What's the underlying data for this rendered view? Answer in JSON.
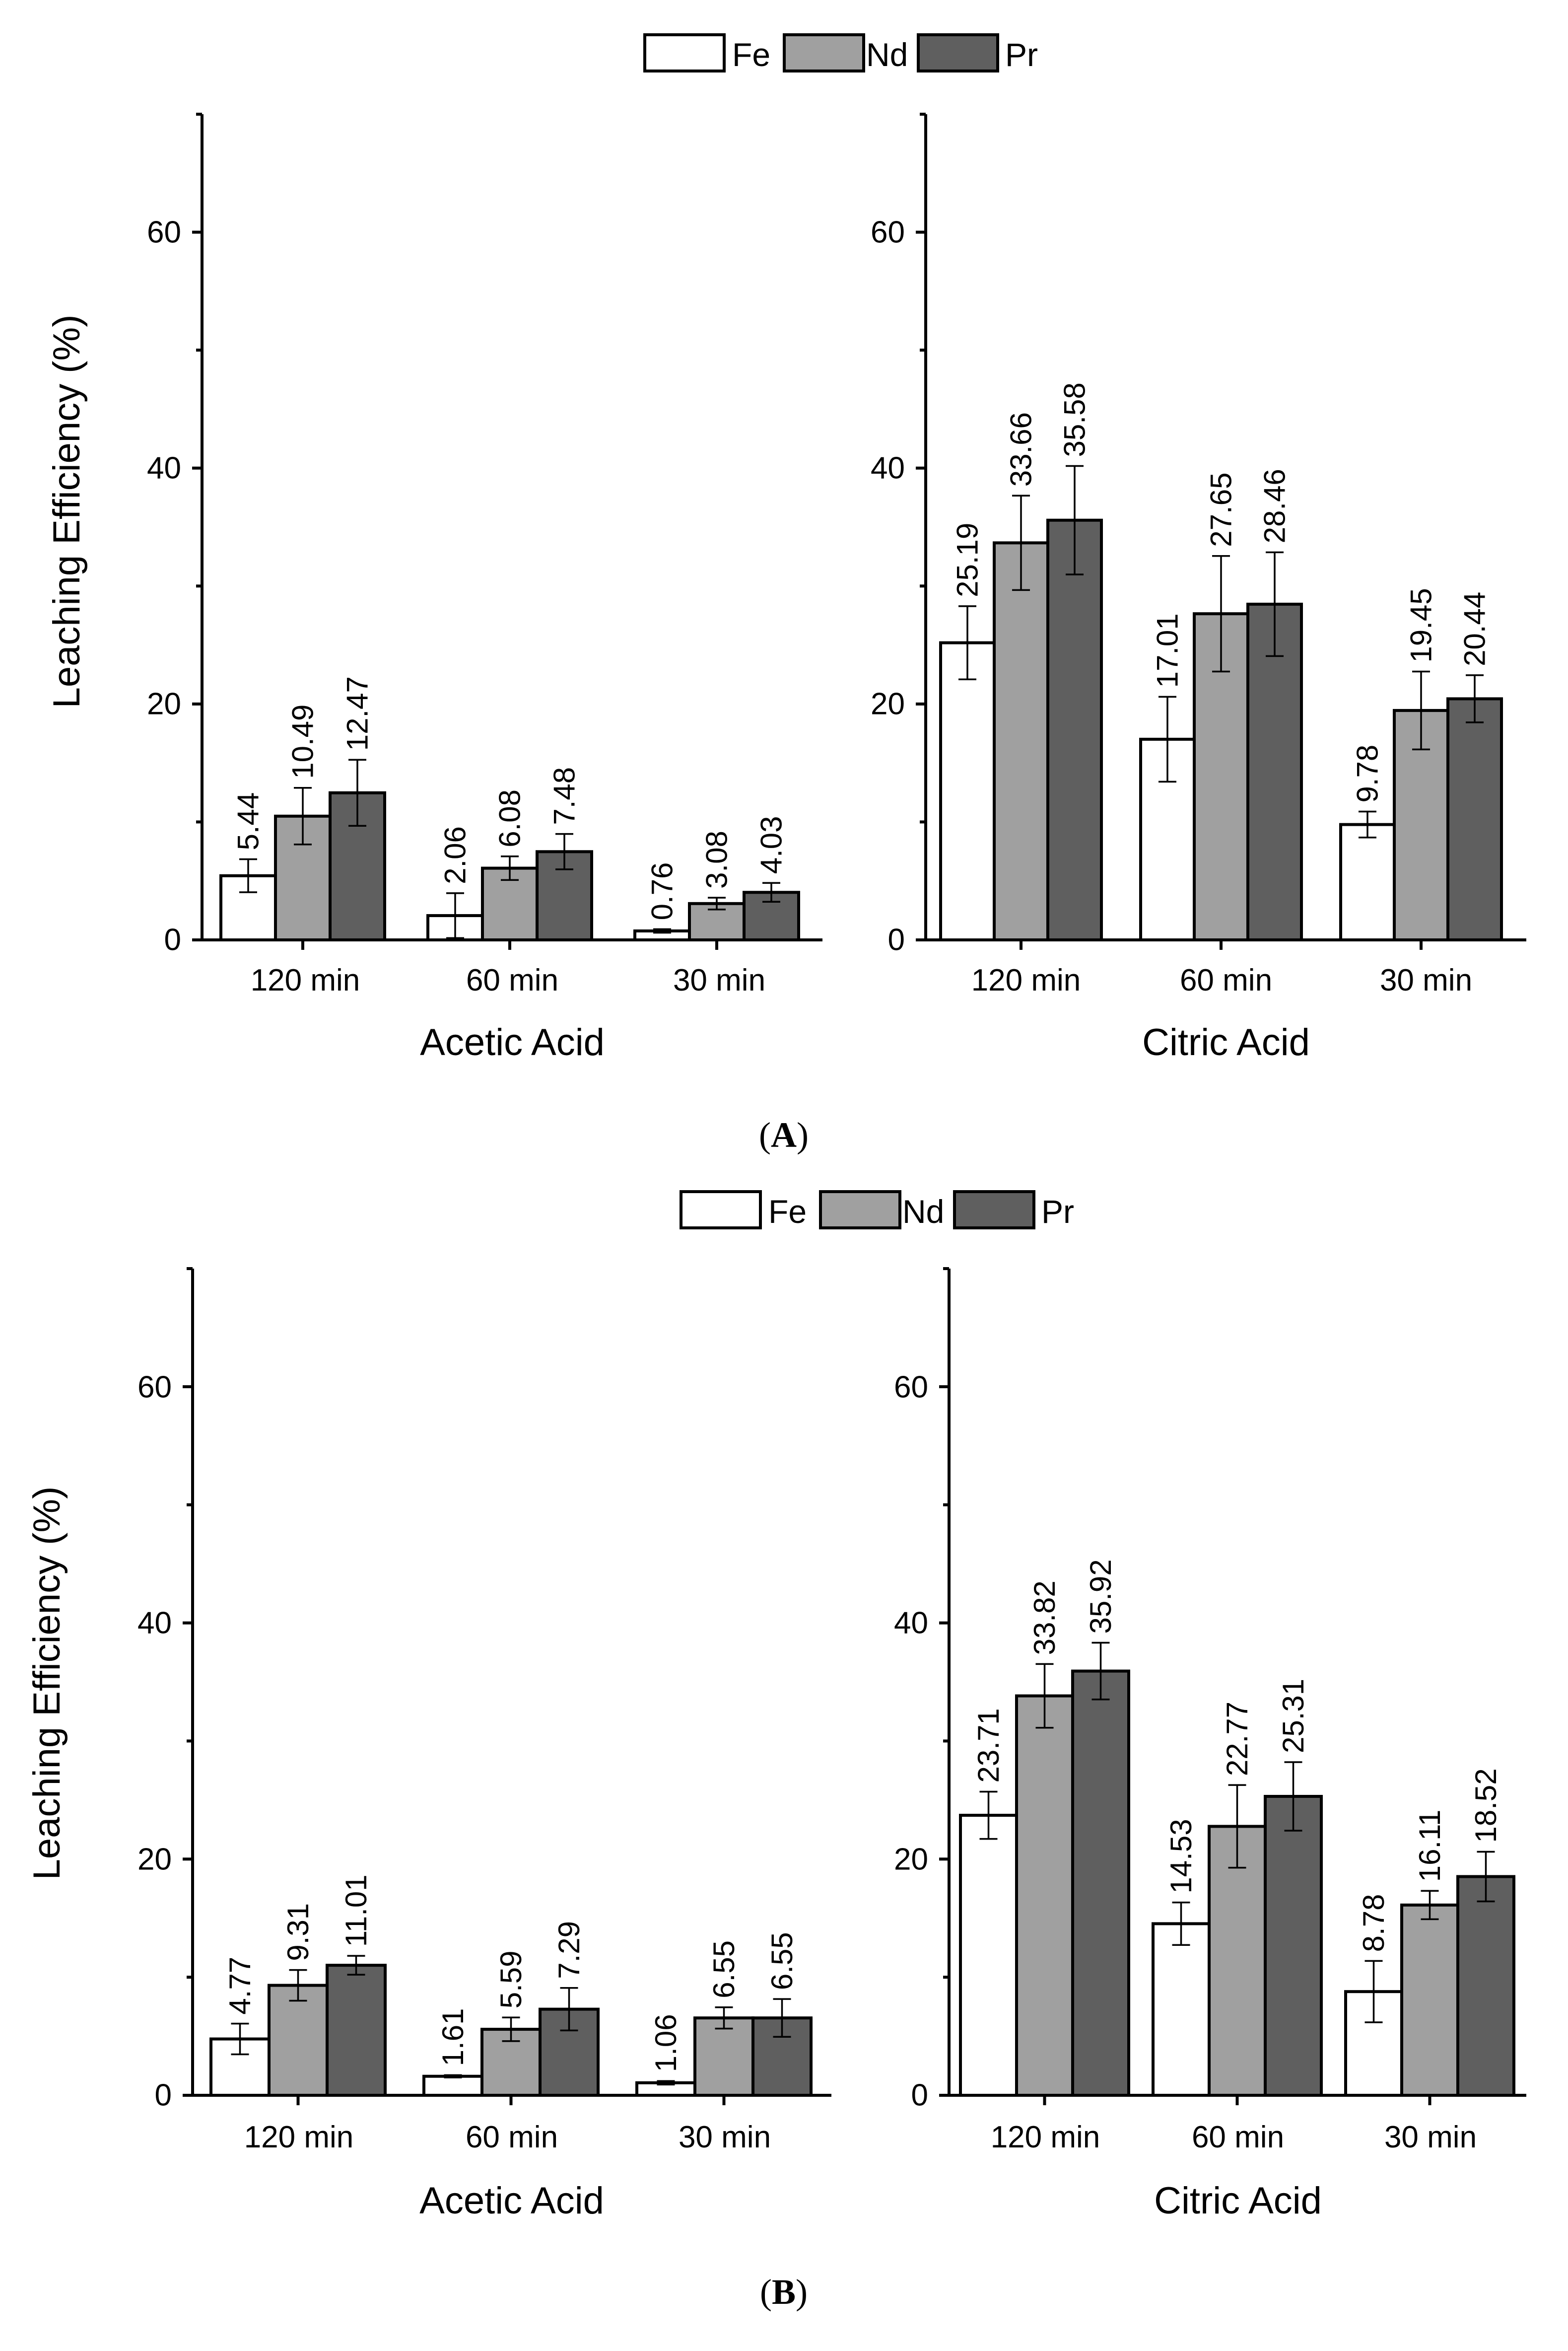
{
  "legend_items": [
    {
      "name": "Fe",
      "color": "#ffffff"
    },
    {
      "name": "Nd",
      "color": "#a0a0a0"
    },
    {
      "name": "Pr",
      "color": "#5f5f5f"
    }
  ],
  "panels": [
    {
      "label_open": "(",
      "label_letter": "A",
      "label_close": ")"
    },
    {
      "label_open": "(",
      "label_letter": "B",
      "label_close": ")"
    }
  ],
  "chart_data": [
    {
      "type": "bar",
      "panel": "A",
      "subplot": "left",
      "categories": [
        "120 min",
        "60 min",
        "30 min"
      ],
      "xlabel": "Acetic Acid",
      "ylabel": "Leaching Efficiency (%)",
      "ylim": [
        0,
        70
      ],
      "yticks": [
        0,
        20,
        40,
        60
      ],
      "series": [
        {
          "name": "Fe",
          "values": [
            5.44,
            2.06,
            0.76
          ],
          "errors": [
            1.4,
            1.9,
            0.15
          ],
          "labels": [
            "5.44",
            "2.06",
            "0.76"
          ]
        },
        {
          "name": "Nd",
          "values": [
            10.49,
            6.08,
            3.08
          ],
          "errors": [
            2.4,
            1.0,
            0.5
          ],
          "labels": [
            "10.49",
            "6.08",
            "3.08"
          ]
        },
        {
          "name": "Pr",
          "values": [
            12.47,
            7.48,
            4.03
          ],
          "errors": [
            2.8,
            1.5,
            0.8
          ],
          "labels": [
            "12.47",
            "7.48",
            "4.03"
          ]
        }
      ]
    },
    {
      "type": "bar",
      "panel": "A",
      "subplot": "right",
      "categories": [
        "120 min",
        "60 min",
        "30 min"
      ],
      "xlabel": "Citric Acid",
      "ylabel": "",
      "ylim": [
        0,
        70
      ],
      "yticks": [
        0,
        20,
        40,
        60
      ],
      "series": [
        {
          "name": "Fe",
          "values": [
            25.19,
            17.01,
            9.78
          ],
          "errors": [
            3.1,
            3.6,
            1.1
          ],
          "labels": [
            "25.19",
            "17.01",
            "9.78"
          ]
        },
        {
          "name": "Nd",
          "values": [
            33.66,
            27.65,
            19.45
          ],
          "errors": [
            4.0,
            4.9,
            3.3
          ],
          "labels": [
            "33.66",
            "27.65",
            "19.45"
          ]
        },
        {
          "name": "Pr",
          "values": [
            35.58,
            28.46,
            20.44
          ],
          "errors": [
            4.6,
            4.4,
            2.0
          ],
          "labels": [
            "35.58",
            "28.46",
            "20.44"
          ]
        }
      ]
    },
    {
      "type": "bar",
      "panel": "B",
      "subplot": "left",
      "categories": [
        "120 min",
        "60 min",
        "30 min"
      ],
      "xlabel": "Acetic Acid",
      "ylabel": "Leaching Efficiency (%)",
      "ylim": [
        0,
        70
      ],
      "yticks": [
        0,
        20,
        40,
        60
      ],
      "series": [
        {
          "name": "Fe",
          "values": [
            4.77,
            1.61,
            1.06
          ],
          "errors": [
            1.3,
            0.1,
            0.15
          ],
          "labels": [
            "4.77",
            "1.61",
            "1.06"
          ]
        },
        {
          "name": "Nd",
          "values": [
            9.31,
            5.59,
            6.55
          ],
          "errors": [
            1.3,
            1.0,
            0.9
          ],
          "labels": [
            "9.31",
            "5.59",
            "6.55"
          ]
        },
        {
          "name": "Pr",
          "values": [
            11.01,
            7.29,
            6.55
          ],
          "errors": [
            0.8,
            1.8,
            1.6
          ],
          "labels": [
            "11.01",
            "7.29",
            "6.55"
          ]
        }
      ]
    },
    {
      "type": "bar",
      "panel": "B",
      "subplot": "right",
      "categories": [
        "120 min",
        "60 min",
        "30 min"
      ],
      "xlabel": "Citric Acid",
      "ylabel": "",
      "ylim": [
        0,
        70
      ],
      "yticks": [
        0,
        20,
        40,
        60
      ],
      "series": [
        {
          "name": "Fe",
          "values": [
            23.71,
            14.53,
            8.78
          ],
          "errors": [
            2.0,
            1.8,
            2.6
          ],
          "labels": [
            "23.71",
            "14.53",
            "8.78"
          ]
        },
        {
          "name": "Nd",
          "values": [
            33.82,
            22.77,
            16.11
          ],
          "errors": [
            2.7,
            3.5,
            1.2
          ],
          "labels": [
            "33.82",
            "22.77",
            "16.11"
          ]
        },
        {
          "name": "Pr",
          "values": [
            35.92,
            25.31,
            18.52
          ],
          "errors": [
            2.4,
            2.9,
            2.1
          ],
          "labels": [
            "35.92",
            "25.31",
            "18.52"
          ]
        }
      ]
    }
  ]
}
